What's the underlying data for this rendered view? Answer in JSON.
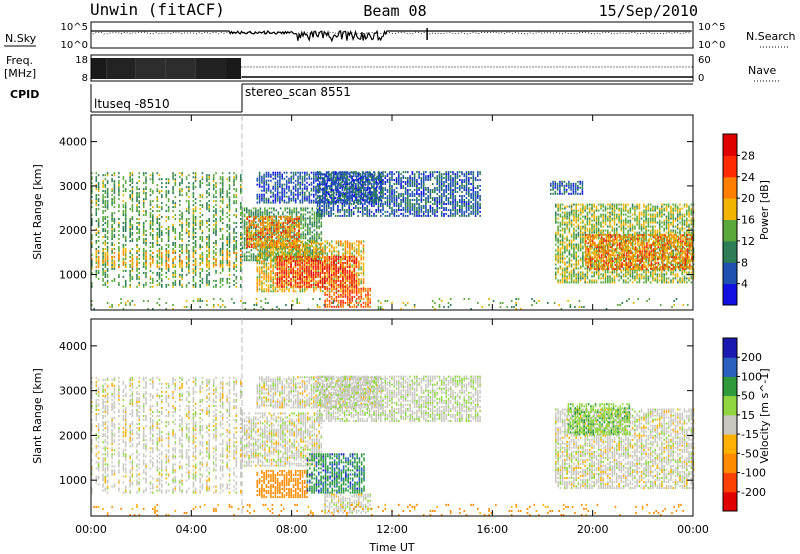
{
  "header": {
    "station": "Unwin (fitACF)",
    "beam": "Beam 08",
    "date": "15/Sep/2010"
  },
  "noise_panel": {
    "left_label": "N.Sky",
    "right_label": "N.Search",
    "left_ticks": [
      "10^5",
      "10^0"
    ],
    "right_ticks": [
      "10^5",
      "10^0"
    ]
  },
  "freq_panel": {
    "left_label_1": "Freq.",
    "left_label_2": "[MHz]",
    "right_label": "Nave",
    "left_ticks": [
      "18",
      "8"
    ],
    "right_ticks": [
      "60",
      "0"
    ]
  },
  "cpid_panel": {
    "label": "CPID",
    "segments": [
      {
        "name": "ltuseq -8510",
        "start": "00:00",
        "end": "06:00"
      },
      {
        "name": "stereo_scan 8551",
        "start": "06:00",
        "end": "24:00"
      }
    ]
  },
  "colors": {
    "power_scale": [
      "#1010e0",
      "#2050b0",
      "#2e7d57",
      "#5aa83c",
      "#f2b400",
      "#ff8000",
      "#ff2a00",
      "#e00000"
    ],
    "velocity_scale": [
      "#e00000",
      "#ff4000",
      "#ff8c00",
      "#ffb000",
      "#c8c8c0",
      "#8fd640",
      "#2e9a3c",
      "#2a5fbf",
      "#1a1ab0"
    ]
  },
  "chart_data": [
    {
      "type": "heatmap",
      "panel": "power",
      "xlabel": "",
      "ylabel": "Slant Range [km]",
      "xlim": [
        "00:00",
        "24:00"
      ],
      "ylim": [
        200,
        4600
      ],
      "yticks": [
        "1000",
        "2000",
        "3000",
        "4000"
      ],
      "colorbar": {
        "label": "Power [dB]",
        "ticks": [
          "4",
          "8",
          "12",
          "16",
          "20",
          "24",
          "28"
        ],
        "range": [
          0,
          32
        ]
      },
      "regions": [
        {
          "t0": 0.0,
          "t1": 6.0,
          "r0": 700,
          "r1": 3300,
          "p": 13,
          "banded": true
        },
        {
          "t0": 0.0,
          "t1": 6.0,
          "r0": 1150,
          "r1": 1550,
          "p": 19,
          "banded": true
        },
        {
          "t0": 6.0,
          "t1": 9.2,
          "r0": 1300,
          "r1": 2500,
          "p": 12
        },
        {
          "t0": 6.2,
          "t1": 8.3,
          "r0": 1600,
          "r1": 2300,
          "p": 22
        },
        {
          "t0": 6.6,
          "t1": 11.6,
          "r0": 2600,
          "r1": 3300,
          "p": 6
        },
        {
          "t0": 9.0,
          "t1": 15.5,
          "r0": 2300,
          "r1": 3300,
          "p": 7
        },
        {
          "t0": 6.6,
          "t1": 10.9,
          "r0": 600,
          "r1": 1750,
          "p": 18
        },
        {
          "t0": 7.4,
          "t1": 10.6,
          "r0": 700,
          "r1": 1400,
          "p": 26
        },
        {
          "t0": 9.3,
          "t1": 11.1,
          "r0": 250,
          "r1": 700,
          "p": 24
        },
        {
          "t0": 18.5,
          "t1": 24.0,
          "r0": 800,
          "r1": 2600,
          "p": 15
        },
        {
          "t0": 19.7,
          "t1": 24.0,
          "r0": 1100,
          "r1": 1900,
          "p": 22
        },
        {
          "t0": 18.3,
          "t1": 19.6,
          "r0": 2800,
          "r1": 3100,
          "p": 7
        },
        {
          "t0": 0.0,
          "t1": 24.0,
          "r0": 200,
          "r1": 450,
          "p": 14,
          "sparse": true
        }
      ]
    },
    {
      "type": "heatmap",
      "panel": "velocity",
      "xlabel": "Time UT",
      "ylabel": "Slant Range [km]",
      "xlim": [
        "00:00",
        "24:00"
      ],
      "ylim": [
        200,
        4600
      ],
      "xticks": [
        "00:00",
        "04:00",
        "08:00",
        "12:00",
        "16:00",
        "20:00",
        "00:00"
      ],
      "yticks": [
        "1000",
        "2000",
        "3000",
        "4000"
      ],
      "colorbar": {
        "label": "Velocity [m s^-1]",
        "ticks": [
          "200",
          "100",
          "50",
          "15",
          "-15",
          "-50",
          "-100",
          "-200"
        ],
        "range": [
          -250,
          250
        ]
      },
      "regions": [
        {
          "t0": 0.0,
          "t1": 6.0,
          "r0": 700,
          "r1": 3300,
          "v": 0,
          "banded": true
        },
        {
          "t0": 6.0,
          "t1": 9.2,
          "r0": 1300,
          "r1": 2500,
          "v": 0
        },
        {
          "t0": 6.6,
          "t1": 11.6,
          "r0": 2600,
          "r1": 3300,
          "v": 0
        },
        {
          "t0": 9.0,
          "t1": 15.5,
          "r0": 2300,
          "r1": 3300,
          "v": 5
        },
        {
          "t0": 6.6,
          "t1": 8.6,
          "r0": 600,
          "r1": 1200,
          "v": -70
        },
        {
          "t0": 8.6,
          "t1": 10.9,
          "r0": 700,
          "r1": 1600,
          "v": 70
        },
        {
          "t0": 9.3,
          "t1": 11.1,
          "r0": 250,
          "r1": 700,
          "v": 0
        },
        {
          "t0": 18.5,
          "t1": 24.0,
          "r0": 800,
          "r1": 2600,
          "v": 0
        },
        {
          "t0": 19.0,
          "t1": 21.5,
          "r0": 2000,
          "r1": 2700,
          "v": 40
        },
        {
          "t0": 0.0,
          "t1": 24.0,
          "r0": 200,
          "r1": 450,
          "v": -60,
          "sparse": true
        }
      ]
    }
  ]
}
